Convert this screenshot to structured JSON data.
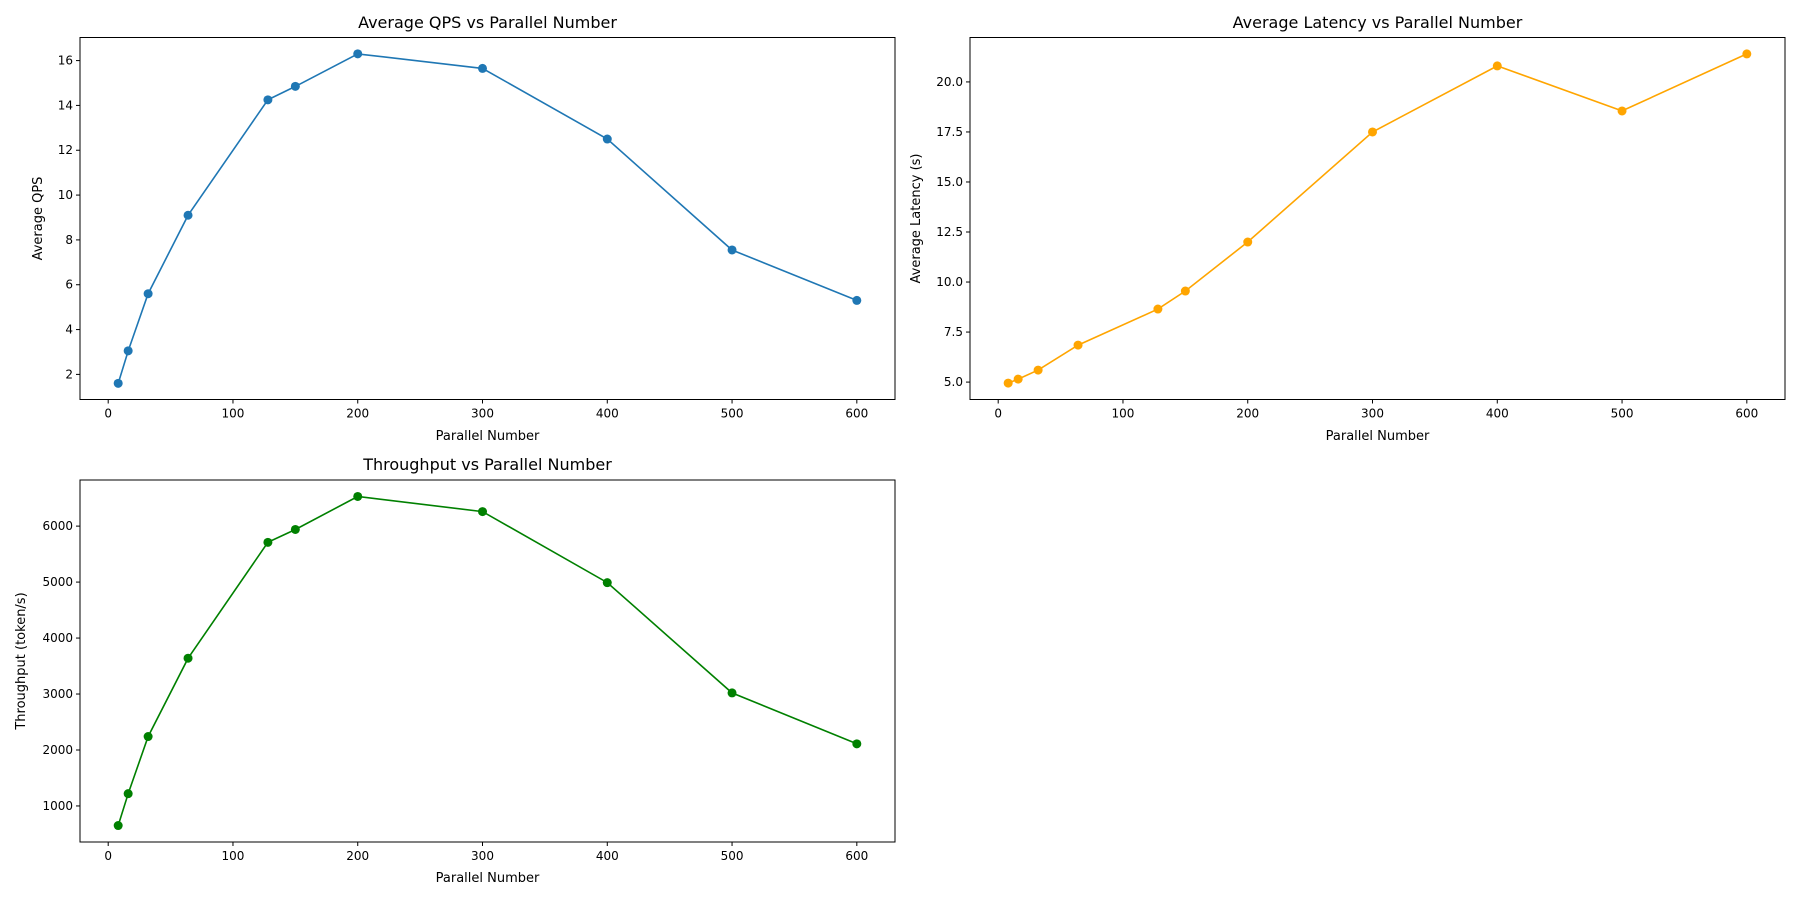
{
  "chart_data": [
    {
      "type": "line",
      "title": "Average QPS vs Parallel Number",
      "xlabel": "Parallel Number",
      "ylabel": "Average QPS",
      "color": "#1f77b4",
      "x": [
        8,
        16,
        32,
        64,
        128,
        150,
        200,
        300,
        400,
        500,
        600
      ],
      "y": [
        1.6,
        3.05,
        5.6,
        9.1,
        14.25,
        14.85,
        16.3,
        15.65,
        12.5,
        7.55,
        5.3
      ],
      "xlim": [
        -22.6,
        630.6
      ],
      "ylim": [
        0.88,
        17.03
      ],
      "xticks": [
        0,
        100,
        200,
        300,
        400,
        500,
        600
      ],
      "xtick_labels": [
        "0",
        "100",
        "200",
        "300",
        "400",
        "500",
        "600"
      ],
      "yticks": [
        2,
        4,
        6,
        8,
        10,
        12,
        14,
        16
      ],
      "ytick_labels": [
        "2",
        "4",
        "6",
        "8",
        "10",
        "12",
        "14",
        "16"
      ],
      "grid": false,
      "legend": "none"
    },
    {
      "type": "line",
      "title": "Average Latency vs Parallel Number",
      "xlabel": "Parallel Number",
      "ylabel": "Average Latency (s)",
      "color": "#ffa500",
      "x": [
        8,
        16,
        32,
        64,
        128,
        150,
        200,
        300,
        400,
        500,
        600
      ],
      "y": [
        4.95,
        5.15,
        5.6,
        6.85,
        8.65,
        9.55,
        12.0,
        17.5,
        20.8,
        18.55,
        21.4
      ],
      "xlim": [
        -22.6,
        630.6
      ],
      "ylim": [
        4.13,
        22.22
      ],
      "xticks": [
        0,
        100,
        200,
        300,
        400,
        500,
        600
      ],
      "xtick_labels": [
        "0",
        "100",
        "200",
        "300",
        "400",
        "500",
        "600"
      ],
      "yticks": [
        5.0,
        7.5,
        10.0,
        12.5,
        15.0,
        17.5,
        20.0
      ],
      "ytick_labels": [
        "5.0",
        "7.5",
        "10.0",
        "12.5",
        "15.0",
        "17.5",
        "20.0"
      ],
      "grid": false,
      "legend": "none"
    },
    {
      "type": "line",
      "title": "Throughput vs Parallel Number",
      "xlabel": "Parallel Number",
      "ylabel": "Throughput (token/s)",
      "color": "#008000",
      "x": [
        8,
        16,
        32,
        64,
        128,
        150,
        200,
        300,
        400,
        500,
        600
      ],
      "y": [
        650,
        1220,
        2240,
        3640,
        5710,
        5940,
        6530,
        6260,
        4990,
        3020,
        2110
      ],
      "xlim": [
        -22.6,
        630.6
      ],
      "ylim": [
        356,
        6824
      ],
      "xticks": [
        0,
        100,
        200,
        300,
        400,
        500,
        600
      ],
      "xtick_labels": [
        "0",
        "100",
        "200",
        "300",
        "400",
        "500",
        "600"
      ],
      "yticks": [
        1000,
        2000,
        3000,
        4000,
        5000,
        6000
      ],
      "ytick_labels": [
        "1000",
        "2000",
        "3000",
        "4000",
        "5000",
        "6000"
      ],
      "grid": false,
      "legend": "none"
    }
  ]
}
